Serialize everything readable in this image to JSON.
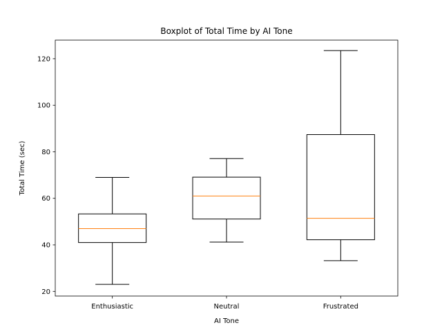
{
  "chart_data": {
    "type": "boxplot",
    "title": "Boxplot of Total Time by AI Tone",
    "xlabel": "AI Tone",
    "ylabel": "Total Time (sec)",
    "ylim": [
      18,
      128
    ],
    "yticks": [
      20,
      40,
      60,
      80,
      100,
      120
    ],
    "grid": false,
    "categories": [
      "Enthusiastic",
      "Neutral",
      "Frustrated"
    ],
    "boxes": [
      {
        "whisker_low": 23,
        "q1": 41,
        "median": 47,
        "q3": 53.3,
        "whisker_high": 69
      },
      {
        "whisker_low": 41.2,
        "q1": 51.1,
        "median": 61,
        "q3": 69.1,
        "whisker_high": 77.1
      },
      {
        "whisker_low": 33.2,
        "q1": 42.2,
        "median": 51.4,
        "q3": 87.4,
        "whisker_high": 123.5
      }
    ],
    "colors": {
      "box": "#000000",
      "median": "#ff7f0e"
    }
  }
}
